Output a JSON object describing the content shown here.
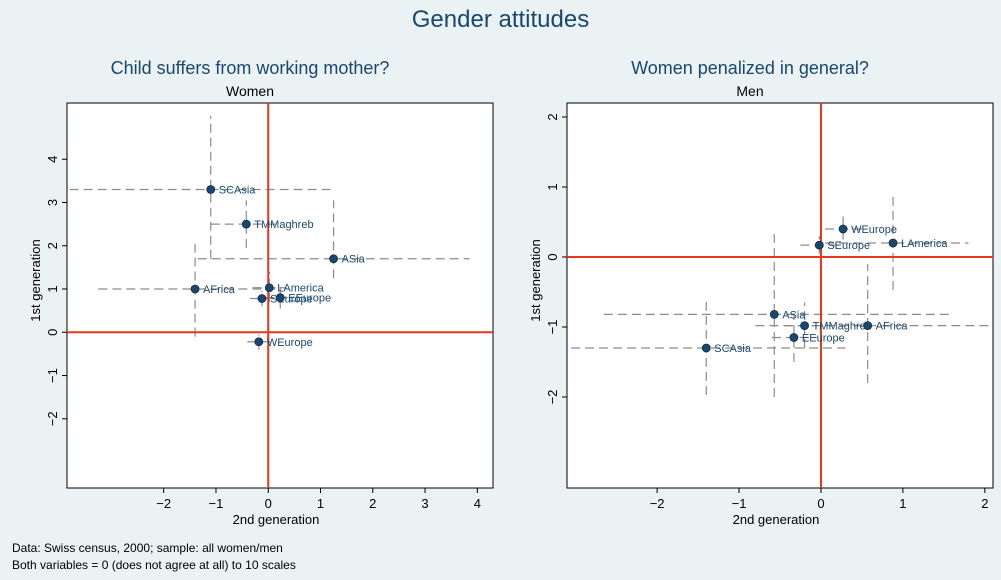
{
  "title": "Gender attitudes",
  "notes": [
    "Data: Swiss census, 2000; sample: all women/men",
    "Both variables = 0 (does not agree at all) to 10 scales"
  ],
  "colors": {
    "background": "#eaf2f3",
    "plot_background": "#ffffff",
    "marker": "#1a476f",
    "reference_line": "#e8361a",
    "ci_line": "#8c8c8c",
    "title": "#1a476f"
  },
  "chart_data": [
    {
      "type": "scatter",
      "title": "Child suffers from working mother?",
      "subtitle": "Women",
      "xlabel": "2nd generation",
      "ylabel": "1st generation",
      "xlim": [
        -3.85,
        4.3
      ],
      "ylim": [
        -3.6,
        5.3
      ],
      "xticks": [
        -2,
        -1,
        0,
        1,
        2,
        3,
        4
      ],
      "yticks": [
        -2,
        -1,
        0,
        1,
        2,
        3,
        4
      ],
      "reference_lines": {
        "x": 0,
        "y": 0
      },
      "points": [
        {
          "label": "SCAsia",
          "x": -1.1,
          "y": 3.3,
          "xci": [
            -3.8,
            1.25
          ],
          "yci": [
            1.7,
            5.0
          ]
        },
        {
          "label": "TMMaghreb",
          "x": -0.42,
          "y": 2.5,
          "xci": [
            -1.1,
            0.25
          ],
          "yci": [
            1.95,
            3.05
          ]
        },
        {
          "label": "ASia",
          "x": 1.25,
          "y": 1.7,
          "xci": [
            -1.35,
            3.85
          ],
          "yci": [
            1.25,
            3.05
          ]
        },
        {
          "label": "AFrica",
          "x": -1.4,
          "y": 1.0,
          "xci": [
            -3.25,
            0.2
          ],
          "yci": [
            -0.1,
            2.1
          ]
        },
        {
          "label": "LAmerica",
          "x": 0.02,
          "y": 1.03,
          "xci": [
            -0.3,
            0.35
          ],
          "yci": [
            0.7,
            1.4
          ]
        },
        {
          "label": "EEurope",
          "x": 0.23,
          "y": 0.8,
          "xci": [
            -0.05,
            0.5
          ],
          "yci": [
            0.55,
            1.05
          ]
        },
        {
          "label": "SEurope",
          "x": -0.12,
          "y": 0.78,
          "xci": [
            -0.35,
            0.1
          ],
          "yci": [
            0.6,
            0.95
          ]
        },
        {
          "label": "WEurope",
          "x": -0.18,
          "y": -0.22,
          "xci": [
            -0.4,
            0.05
          ],
          "yci": [
            -0.4,
            -0.05
          ]
        }
      ]
    },
    {
      "type": "scatter",
      "title": "Women penalized in general?",
      "subtitle": "Men",
      "xlabel": "2nd generation",
      "ylabel": "1st generation",
      "xlim": [
        -3.1,
        2.1
      ],
      "ylim": [
        -3.3,
        2.2
      ],
      "xticks": [
        -2,
        -1,
        0,
        1,
        2
      ],
      "yticks": [
        -2,
        -1,
        0,
        1,
        2
      ],
      "reference_lines": {
        "x": 0,
        "y": 0
      },
      "points": [
        {
          "label": "WEurope",
          "x": 0.27,
          "y": 0.4,
          "xci": [
            0.05,
            0.5
          ],
          "yci": [
            0.25,
            0.58
          ]
        },
        {
          "label": "SEurope",
          "x": -0.02,
          "y": 0.17,
          "xci": [
            -0.25,
            0.2
          ],
          "yci": [
            0.05,
            0.3
          ]
        },
        {
          "label": "LAmerica",
          "x": 0.88,
          "y": 0.2,
          "xci": [
            0.05,
            1.8
          ],
          "yci": [
            -0.47,
            0.9
          ]
        },
        {
          "label": "ASia",
          "x": -0.57,
          "y": -0.82,
          "xci": [
            -2.65,
            1.6
          ],
          "yci": [
            -2.0,
            0.35
          ]
        },
        {
          "label": "TMMaghreb",
          "x": -0.2,
          "y": -0.98,
          "xci": [
            -0.45,
            0.05
          ],
          "yci": [
            -1.3,
            -0.65
          ]
        },
        {
          "label": "AFrica",
          "x": 0.57,
          "y": -0.98,
          "xci": [
            -0.8,
            2.1
          ],
          "yci": [
            -1.8,
            -0.1
          ]
        },
        {
          "label": "EEurope",
          "x": -0.33,
          "y": -1.15,
          "xci": [
            -0.6,
            -0.05
          ],
          "yci": [
            -1.5,
            -0.8
          ]
        },
        {
          "label": "SCAsia",
          "x": -1.4,
          "y": -1.3,
          "xci": [
            -3.05,
            0.3
          ],
          "yci": [
            -1.97,
            -0.6
          ]
        }
      ]
    }
  ]
}
